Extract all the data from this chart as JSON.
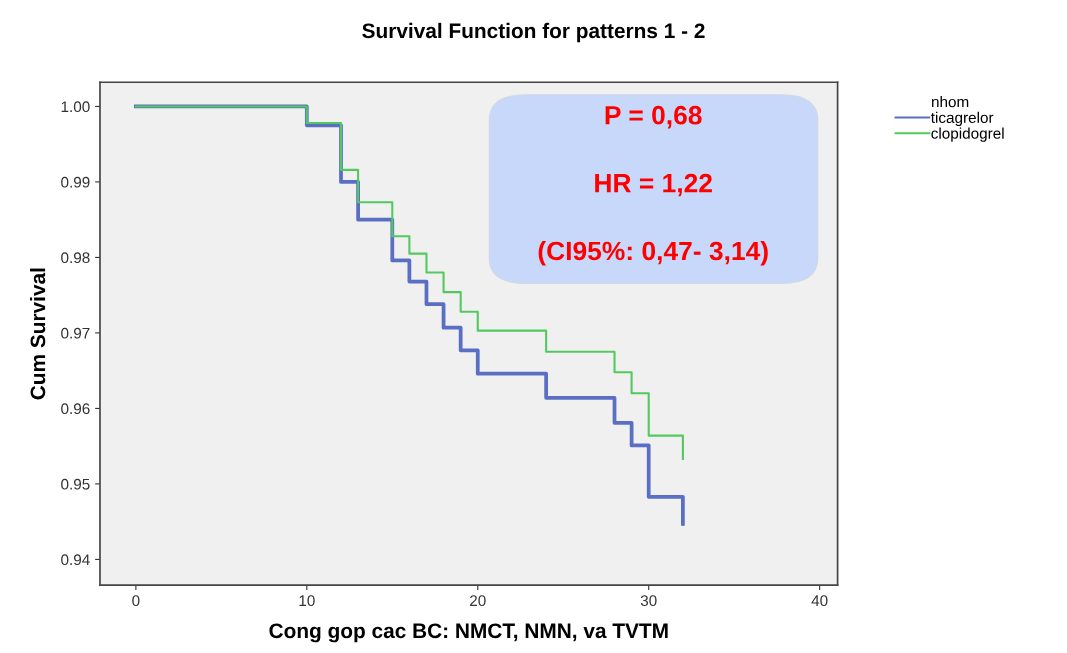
{
  "chart_data": {
    "type": "step",
    "title": "Survival Function for patterns 1 - 2",
    "xlabel": "Cong gop cac BC: NMCT, NMN, va TVTM",
    "ylabel": "Cum Survival",
    "legend_title": "nhom",
    "x": [
      0,
      10,
      12,
      13,
      15,
      16,
      17,
      18,
      19,
      20,
      24,
      28,
      29,
      30,
      32
    ],
    "series": [
      {
        "name": "ticagrelor",
        "color": "#5a6ec4",
        "values": [
          1.0,
          0.9975,
          0.99,
          0.985,
          0.9796,
          0.9768,
          0.9738,
          0.9707,
          0.9677,
          0.9646,
          0.9614,
          0.9581,
          0.9551,
          0.9483,
          0.9447
        ]
      },
      {
        "name": "clopidogrel",
        "color": "#52c95e",
        "values": [
          1.0,
          0.9978,
          0.9916,
          0.9873,
          0.9828,
          0.9805,
          0.978,
          0.9754,
          0.9728,
          0.9703,
          0.9675,
          0.9648,
          0.962,
          0.9564,
          0.9533
        ]
      }
    ],
    "xlim": [
      -2.1,
      41.05
    ],
    "ylim": [
      0.9366,
      1.0032
    ],
    "xticks": [
      0,
      10,
      20,
      30,
      40
    ],
    "yticks": [
      {
        "value": 0.94,
        "label": "0.94"
      },
      {
        "value": 0.95,
        "label": "0.95"
      },
      {
        "value": 0.96,
        "label": "0.96"
      },
      {
        "value": 0.97,
        "label": "0.97"
      },
      {
        "value": 0.98,
        "label": "0.98"
      },
      {
        "value": 0.99,
        "label": "0.99"
      },
      {
        "value": 1.0,
        "label": "1.00"
      }
    ],
    "annotations": [
      "P = 0,68",
      "HR = 1,22",
      "(CI95%: 0,47- 3,14)"
    ],
    "grid": false,
    "legend": "top right",
    "marker": "none",
    "line_style": "solid"
  }
}
